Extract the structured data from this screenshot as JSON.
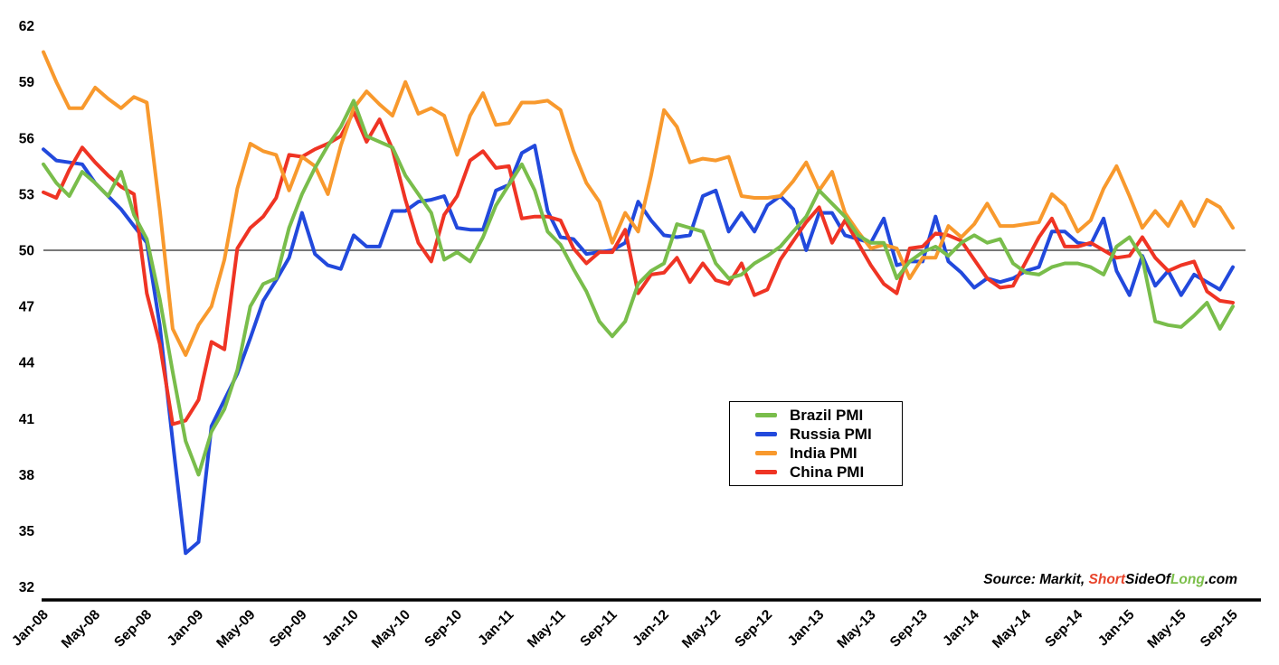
{
  "chart_data": {
    "type": "line",
    "title": "",
    "xlabel": "",
    "ylabel": "",
    "ylim": [
      32,
      62
    ],
    "y_ticks": [
      62,
      59,
      56,
      53,
      50,
      47,
      44,
      41,
      38,
      35,
      32
    ],
    "reference_line_value": 50,
    "grid": "off",
    "legend_position": "center",
    "x_tick_every": 4,
    "x_tick_labels": [
      "Jan-08",
      "May-08",
      "Sep-08",
      "Jan-09",
      "May-09",
      "Sep-09",
      "Jan-10",
      "May-10",
      "Sep-10",
      "Jan-11",
      "May-11",
      "Sep-11",
      "Jan-12",
      "May-12",
      "Sep-12",
      "Jan-13",
      "May-13",
      "Sep-13",
      "Jan-14",
      "May-14",
      "Sep-14",
      "Jan-15",
      "May-15",
      "Sep-15"
    ],
    "x_months": 93,
    "draw_order": [
      1,
      3,
      2,
      0
    ],
    "series": [
      {
        "name": "Brazil PMI",
        "color": "#79BD4B",
        "values": [
          54.6,
          53.6,
          52.9,
          54.2,
          53.6,
          52.9,
          54.2,
          51.9,
          50.6,
          47.4,
          43.5,
          39.8,
          38.0,
          40.3,
          41.5,
          43.6,
          47.0,
          48.2,
          48.5,
          51.2,
          53.0,
          54.4,
          55.6,
          56.6,
          58.0,
          56.1,
          55.8,
          55.5,
          54.0,
          53.0,
          52.0,
          49.5,
          49.9,
          49.4,
          50.7,
          52.4,
          53.5,
          54.6,
          53.2,
          51.0,
          50.3,
          49.0,
          47.8,
          46.2,
          45.4,
          46.2,
          48.2,
          48.9,
          49.3,
          51.4,
          51.2,
          51.0,
          49.3,
          48.5,
          48.7,
          49.3,
          49.7,
          50.2,
          51.0,
          51.8,
          53.2,
          52.5,
          51.8,
          50.8,
          50.4,
          50.4,
          48.5,
          49.4,
          49.9,
          50.2,
          49.7,
          50.4,
          50.8,
          50.4,
          50.6,
          49.3,
          48.8,
          48.7,
          49.1,
          49.3,
          49.3,
          49.1,
          48.7,
          50.2,
          50.7,
          49.6,
          46.2,
          46.0,
          45.9,
          46.5,
          47.2,
          45.8,
          47.0
        ]
      },
      {
        "name": "Russia PMI",
        "color": "#2249DC",
        "values": [
          55.4,
          54.8,
          54.7,
          54.6,
          53.6,
          52.9,
          52.2,
          51.3,
          50.4,
          46.0,
          39.8,
          33.8,
          34.4,
          40.6,
          42.0,
          43.4,
          45.3,
          47.3,
          48.4,
          49.6,
          52.0,
          49.8,
          49.2,
          49.0,
          50.8,
          50.2,
          50.2,
          52.1,
          52.1,
          52.6,
          52.7,
          52.9,
          51.2,
          51.1,
          51.1,
          53.2,
          53.5,
          55.2,
          55.6,
          52.1,
          50.7,
          50.6,
          49.8,
          49.9,
          50.0,
          50.4,
          52.6,
          51.6,
          50.8,
          50.7,
          50.8,
          52.9,
          53.2,
          51.0,
          52.0,
          51.0,
          52.4,
          52.9,
          52.2,
          50.0,
          52.0,
          52.0,
          50.8,
          50.6,
          50.4,
          51.7,
          49.2,
          49.4,
          49.4,
          51.8,
          49.4,
          48.8,
          48.0,
          48.5,
          48.3,
          48.5,
          48.9,
          49.1,
          51.0,
          51.0,
          50.4,
          50.3,
          51.7,
          48.9,
          47.6,
          49.7,
          48.1,
          48.9,
          47.6,
          48.7,
          48.3,
          47.9,
          49.1
        ]
      },
      {
        "name": "India PMI",
        "color": "#F8992D",
        "values": [
          60.6,
          59.0,
          57.6,
          57.6,
          58.7,
          58.1,
          57.6,
          58.2,
          57.9,
          52.2,
          45.8,
          44.4,
          46.0,
          47.0,
          49.5,
          53.3,
          55.7,
          55.3,
          55.1,
          53.2,
          55.0,
          54.5,
          53.0,
          55.6,
          57.6,
          58.5,
          57.8,
          57.2,
          59.0,
          57.3,
          57.6,
          57.2,
          55.1,
          57.2,
          58.4,
          56.7,
          56.8,
          57.9,
          57.9,
          58.0,
          57.5,
          55.3,
          53.6,
          52.6,
          50.4,
          52.0,
          51.0,
          54.0,
          57.5,
          56.6,
          54.7,
          54.9,
          54.8,
          55.0,
          52.9,
          52.8,
          52.8,
          52.9,
          53.7,
          54.7,
          53.2,
          54.2,
          52.0,
          51.0,
          50.1,
          50.3,
          50.1,
          48.5,
          49.6,
          49.6,
          51.3,
          50.7,
          51.4,
          52.5,
          51.3,
          51.3,
          51.4,
          51.5,
          53.0,
          52.4,
          51.0,
          51.6,
          53.3,
          54.5,
          52.9,
          51.2,
          52.1,
          51.3,
          52.6,
          51.3,
          52.7,
          52.3,
          51.2
        ]
      },
      {
        "name": "China PMI",
        "color": "#EF3424",
        "values": [
          53.1,
          52.8,
          54.3,
          55.5,
          54.7,
          54.0,
          53.4,
          53.0,
          47.7,
          45.0,
          40.7,
          40.9,
          42.0,
          45.1,
          44.7,
          50.1,
          51.2,
          51.8,
          52.8,
          55.1,
          55.0,
          55.4,
          55.7,
          56.1,
          57.4,
          55.8,
          57.0,
          55.4,
          52.7,
          50.4,
          49.4,
          51.9,
          52.9,
          54.8,
          55.3,
          54.4,
          54.5,
          51.7,
          51.8,
          51.8,
          51.6,
          50.1,
          49.3,
          49.9,
          49.9,
          51.1,
          47.7,
          48.7,
          48.8,
          49.6,
          48.3,
          49.3,
          48.4,
          48.2,
          49.3,
          47.6,
          47.9,
          49.5,
          50.5,
          51.5,
          52.3,
          50.4,
          51.6,
          50.4,
          49.2,
          48.2,
          47.7,
          50.1,
          50.2,
          50.9,
          50.8,
          50.5,
          49.5,
          48.5,
          48.0,
          48.1,
          49.4,
          50.7,
          51.7,
          50.2,
          50.2,
          50.4,
          50.0,
          49.6,
          49.7,
          50.7,
          49.6,
          48.9,
          49.2,
          49.4,
          47.8,
          47.3,
          47.2
        ]
      }
    ]
  },
  "source": {
    "prefix": "Source: Markit, ",
    "brand_red": "Short",
    "brand_mid": "SideOf",
    "brand_green": "Long",
    "suffix": ".com",
    "red_color": "#E8442B",
    "green_color": "#7CBF4B"
  }
}
